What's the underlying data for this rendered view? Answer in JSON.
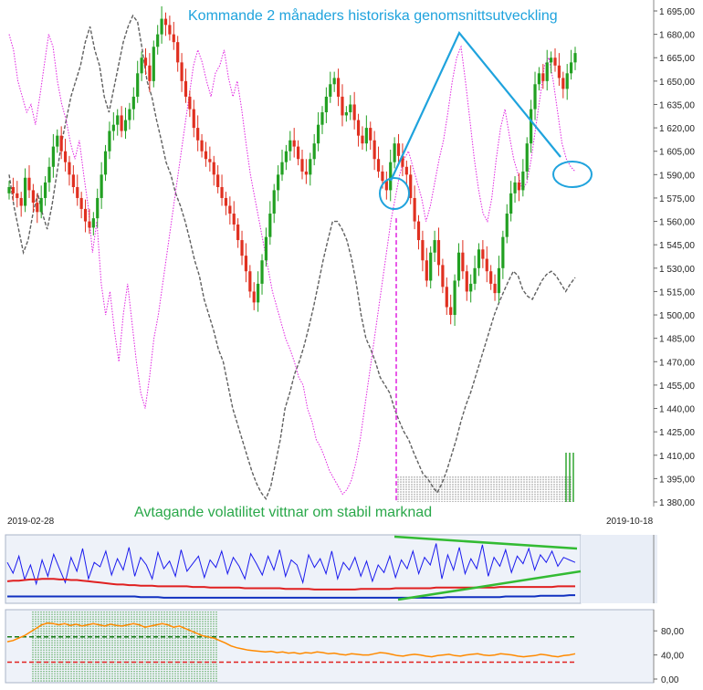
{
  "annotations": {
    "top": "Kommande 2 månaders historiska genomsnittsutveckling",
    "middle": "Avtagande volatilitet vittnar om stabil marknad"
  },
  "chart_data": [
    {
      "type": "candlestick",
      "y_ticks": [
        "1 695,00",
        "1 680,00",
        "1 665,00",
        "1 650,00",
        "1 635,00",
        "1 620,00",
        "1 605,00",
        "1 590,00",
        "1 575,00",
        "1 560,00",
        "1 545,00",
        "1 530,00",
        "1 515,00",
        "1 500,00",
        "1 485,00",
        "1 470,00",
        "1 455,00",
        "1 440,00",
        "1 425,00",
        "1 410,00",
        "1 395,00",
        "1 380,00"
      ],
      "ylim": [
        1380,
        1695
      ],
      "x_start": "2019-02-28",
      "x_end": "2019-10-18",
      "colors": {
        "up": "#22a022",
        "down": "#e03020",
        "seasonal": "#e020e0",
        "comparison": "#606060",
        "annotation": "#1fa3dd"
      },
      "close": [
        1582,
        1578,
        1575,
        1570,
        1588,
        1580,
        1572,
        1566,
        1575,
        1585,
        1595,
        1608,
        1615,
        1605,
        1598,
        1590,
        1582,
        1575,
        1568,
        1560,
        1556,
        1562,
        1575,
        1590,
        1605,
        1618,
        1622,
        1628,
        1618,
        1625,
        1632,
        1640,
        1655,
        1665,
        1660,
        1650,
        1672,
        1680,
        1690,
        1686,
        1680,
        1675,
        1662,
        1650,
        1640,
        1632,
        1620,
        1612,
        1605,
        1600,
        1598,
        1590,
        1582,
        1575,
        1570,
        1565,
        1558,
        1548,
        1538,
        1528,
        1515,
        1508,
        1520,
        1535,
        1550,
        1565,
        1580,
        1590,
        1598,
        1605,
        1612,
        1608,
        1600,
        1592,
        1590,
        1600,
        1610,
        1622,
        1630,
        1640,
        1648,
        1652,
        1640,
        1628,
        1630,
        1635,
        1625,
        1615,
        1610,
        1620,
        1612,
        1600,
        1592,
        1586,
        1580,
        1598,
        1610,
        1602,
        1595,
        1590,
        1575,
        1560,
        1548,
        1535,
        1522,
        1540,
        1548,
        1532,
        1518,
        1505,
        1500,
        1522,
        1540,
        1528,
        1515,
        1520,
        1530,
        1542,
        1536,
        1528,
        1520,
        1514,
        1530,
        1550,
        1565,
        1578,
        1585,
        1580,
        1592,
        1610,
        1632,
        1648,
        1655,
        1650,
        1662,
        1665,
        1660,
        1652,
        1645,
        1655,
        1662,
        1668
      ],
      "seasonal": [
        1680,
        1670,
        1650,
        1640,
        1630,
        1635,
        1622,
        1640,
        1660,
        1680,
        1672,
        1650,
        1635,
        1625,
        1610,
        1600,
        1612,
        1590,
        1570,
        1540,
        1560,
        1520,
        1500,
        1515,
        1490,
        1470,
        1500,
        1520,
        1495,
        1470,
        1450,
        1440,
        1460,
        1485,
        1500,
        1520,
        1540,
        1560,
        1580,
        1600,
        1620,
        1640,
        1660,
        1670,
        1662,
        1650,
        1640,
        1655,
        1660,
        1670,
        1652,
        1640,
        1650,
        1632,
        1610,
        1590,
        1575,
        1560,
        1545,
        1530,
        1515,
        1505,
        1495,
        1485,
        1478,
        1470,
        1460,
        1455,
        1440,
        1432,
        1420,
        1415,
        1408,
        1400,
        1395,
        1390,
        1385,
        1388,
        1394,
        1405,
        1420,
        1440,
        1460,
        1480,
        1500,
        1520,
        1540,
        1560,
        1575,
        1590,
        1600,
        1605,
        1595,
        1585,
        1575,
        1560,
        1570,
        1585,
        1600,
        1612,
        1630,
        1650,
        1665,
        1672,
        1650,
        1625,
        1600,
        1580,
        1565,
        1560,
        1575,
        1600,
        1620,
        1632,
        1615,
        1600,
        1590,
        1580,
        1585,
        1600,
        1620,
        1640,
        1660,
        1665,
        1650,
        1630,
        1610,
        1600,
        1595,
        1592
      ],
      "comparison": [
        1590,
        1570,
        1555,
        1540,
        1548,
        1565,
        1578,
        1565,
        1555,
        1570,
        1590,
        1610,
        1625,
        1640,
        1650,
        1660,
        1675,
        1685,
        1670,
        1660,
        1640,
        1630,
        1645,
        1660,
        1675,
        1685,
        1692,
        1688,
        1670,
        1650,
        1640,
        1625,
        1612,
        1598,
        1590,
        1578,
        1570,
        1560,
        1548,
        1535,
        1525,
        1510,
        1500,
        1490,
        1478,
        1470,
        1455,
        1440,
        1430,
        1420,
        1410,
        1400,
        1392,
        1386,
        1382,
        1390,
        1405,
        1420,
        1440,
        1450,
        1462,
        1470,
        1480,
        1492,
        1505,
        1520,
        1535,
        1548,
        1560,
        1560,
        1555,
        1548,
        1536,
        1520,
        1500,
        1485,
        1478,
        1470,
        1460,
        1455,
        1450,
        1440,
        1432,
        1425,
        1420,
        1412,
        1405,
        1398,
        1395,
        1390,
        1386,
        1392,
        1400,
        1410,
        1420,
        1432,
        1442,
        1450,
        1460,
        1470,
        1480,
        1490,
        1500,
        1508,
        1515,
        1522,
        1528,
        1525,
        1516,
        1512,
        1510,
        1516,
        1522,
        1526,
        1528,
        1525,
        1520,
        1515,
        1520,
        1524
      ]
    },
    {
      "type": "line",
      "colors": {
        "volatility": "#1a1aee",
        "mid": "#e02020",
        "base": "#1030c0",
        "trend": "#33bb33"
      },
      "series": [
        {
          "values": [
            0.62,
            0.45,
            0.72,
            0.35,
            0.58,
            0.28,
            0.66,
            0.4,
            0.75,
            0.52,
            0.3,
            0.7,
            0.48,
            0.84,
            0.36,
            0.62,
            0.55,
            0.8,
            0.42,
            0.68,
            0.5,
            0.86,
            0.4,
            0.7,
            0.58,
            0.36,
            0.78,
            0.52,
            0.64,
            0.4,
            0.82,
            0.48,
            0.6,
            0.72,
            0.38,
            0.66,
            0.54,
            0.8,
            0.44,
            0.7,
            0.56,
            0.36,
            0.76,
            0.6,
            0.42,
            0.72,
            0.5,
            0.82,
            0.4,
            0.66,
            0.58,
            0.3,
            0.74,
            0.54,
            0.68,
            0.44,
            0.8,
            0.36,
            0.62,
            0.5,
            0.7,
            0.4,
            0.64,
            0.32,
            0.58,
            0.46,
            0.72,
            0.38,
            0.66,
            0.52,
            0.8,
            0.44,
            0.7,
            0.58,
            0.92,
            0.36,
            0.74,
            0.5,
            0.86,
            0.44,
            0.68,
            0.52,
            0.9,
            0.4,
            0.7,
            0.56,
            0.82,
            0.46,
            0.72,
            0.6,
            0.84,
            0.5,
            0.74,
            0.62,
            0.8,
            0.56,
            0.7,
            0.66,
            0.62
          ]
        },
        {
          "values": [
            0.32,
            0.33,
            0.33,
            0.34,
            0.35,
            0.35,
            0.36,
            0.36,
            0.36,
            0.35,
            0.35,
            0.34,
            0.34,
            0.33,
            0.32,
            0.31,
            0.3,
            0.29,
            0.28,
            0.27,
            0.27,
            0.26,
            0.26,
            0.25,
            0.25,
            0.25,
            0.24,
            0.24,
            0.24,
            0.24,
            0.24,
            0.24,
            0.23,
            0.23,
            0.23,
            0.22,
            0.22,
            0.22,
            0.22,
            0.22,
            0.22,
            0.21,
            0.21,
            0.21,
            0.21,
            0.21,
            0.21,
            0.21,
            0.2,
            0.2,
            0.2,
            0.2,
            0.2,
            0.19,
            0.19,
            0.19,
            0.19,
            0.19,
            0.19,
            0.19,
            0.19,
            0.2,
            0.2,
            0.2,
            0.2,
            0.2,
            0.2,
            0.21,
            0.21,
            0.21,
            0.21,
            0.21,
            0.21,
            0.21,
            0.22,
            0.22,
            0.22,
            0.22,
            0.22,
            0.22,
            0.22,
            0.22,
            0.22,
            0.22,
            0.22,
            0.23,
            0.23,
            0.23,
            0.23,
            0.23,
            0.23,
            0.23,
            0.23,
            0.23,
            0.23,
            0.24,
            0.24,
            0.24,
            0.24
          ]
        },
        {
          "values": [
            0.08,
            0.08,
            0.08,
            0.08,
            0.08,
            0.08,
            0.08,
            0.08,
            0.08,
            0.08,
            0.08,
            0.08,
            0.08,
            0.08,
            0.08,
            0.08,
            0.08,
            0.08,
            0.08,
            0.08,
            0.08,
            0.08,
            0.08,
            0.07,
            0.07,
            0.07,
            0.07,
            0.06,
            0.06,
            0.06,
            0.06,
            0.06,
            0.06,
            0.06,
            0.06,
            0.06,
            0.06,
            0.06,
            0.06,
            0.06,
            0.06,
            0.06,
            0.06,
            0.06,
            0.06,
            0.06,
            0.06,
            0.06,
            0.06,
            0.06,
            0.06,
            0.06,
            0.06,
            0.06,
            0.06,
            0.06,
            0.06,
            0.06,
            0.06,
            0.06,
            0.06,
            0.06,
            0.06,
            0.06,
            0.06,
            0.06,
            0.06,
            0.06,
            0.06,
            0.06,
            0.06,
            0.06,
            0.06,
            0.06,
            0.06,
            0.06,
            0.07,
            0.07,
            0.07,
            0.07,
            0.07,
            0.07,
            0.07,
            0.07,
            0.07,
            0.07,
            0.08,
            0.08,
            0.08,
            0.08,
            0.08,
            0.08,
            0.09,
            0.09,
            0.09,
            0.09,
            0.09,
            0.1,
            0.1
          ]
        }
      ]
    },
    {
      "type": "line",
      "y_ticks": [
        "80,00",
        "40,00",
        "0,00"
      ],
      "ylim": [
        0,
        100
      ],
      "reference_lines": [
        70,
        28
      ],
      "colors": {
        "line": "#ff8a00",
        "upper": "#1a7a1a",
        "lower": "#e02020",
        "shade": "#1a8a1a"
      },
      "values": [
        62,
        64,
        68,
        72,
        78,
        84,
        90,
        93,
        92,
        90,
        92,
        89,
        91,
        88,
        90,
        92,
        90,
        88,
        91,
        89,
        88,
        90,
        92,
        90,
        86,
        88,
        90,
        92,
        90,
        86,
        88,
        84,
        80,
        76,
        72,
        70,
        68,
        64,
        60,
        55,
        52,
        50,
        48,
        47,
        46,
        45,
        46,
        44,
        45,
        43,
        44,
        42,
        44,
        43,
        45,
        44,
        42,
        43,
        41,
        40,
        42,
        41,
        40,
        40,
        42,
        44,
        43,
        41,
        39,
        38,
        40,
        41,
        40,
        38,
        37,
        39,
        40,
        41,
        39,
        38,
        40,
        41,
        42,
        40,
        39,
        40,
        42,
        41,
        40,
        38,
        37,
        38,
        39,
        41,
        40,
        38,
        37,
        39,
        40,
        42
      ]
    }
  ]
}
